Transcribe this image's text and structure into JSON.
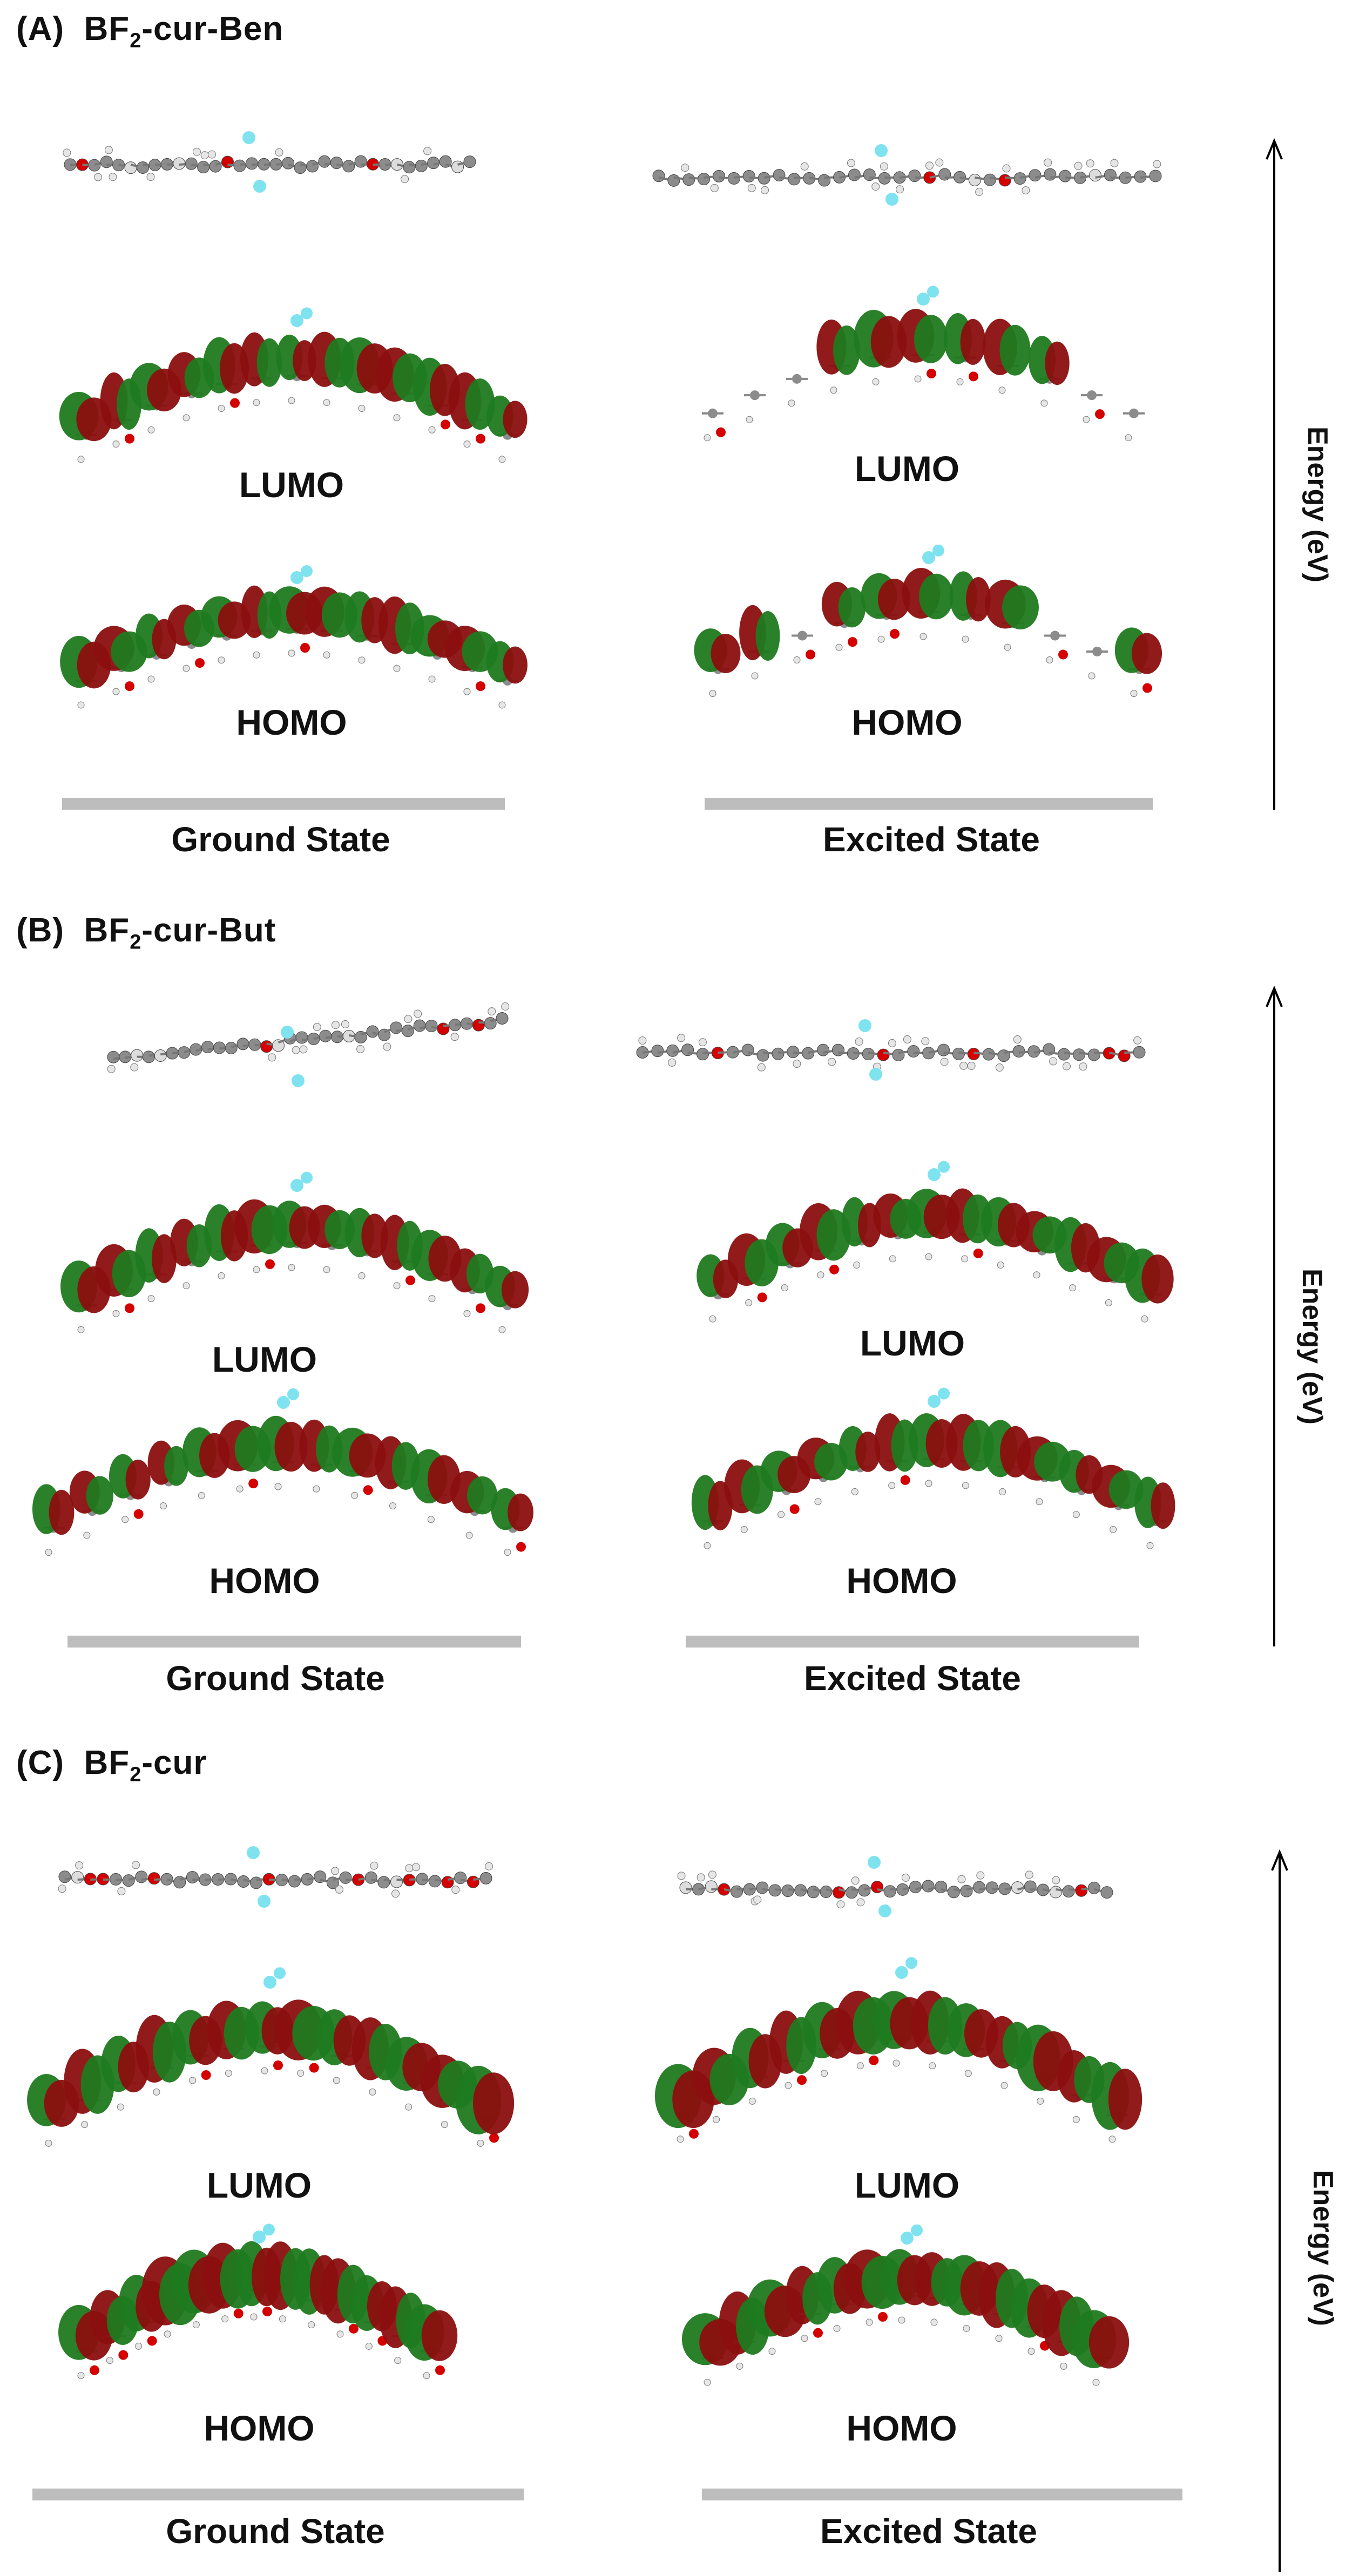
{
  "colors": {
    "lobe_red": "#8b0f0f",
    "lobe_green": "#1f7a1f",
    "carbon": "#8c8c8c",
    "oxygen": "#d40000",
    "fluorine": "#7fe3ef",
    "bar": "#bdbdbd"
  },
  "panels": [
    {
      "label": "(A)",
      "name_prefix": "BF",
      "name_sub": "2",
      "name_suffix": "-cur-Ben",
      "ground": {
        "lumo": "LUMO",
        "homo": "HOMO",
        "state": "Ground State"
      },
      "excited": {
        "lumo": "LUMO",
        "homo": "HOMO",
        "state": "Excited State"
      },
      "energy": "Energy (eV)"
    },
    {
      "label": "(B)",
      "name_prefix": "BF",
      "name_sub": "2",
      "name_suffix": "-cur-But",
      "ground": {
        "lumo": "LUMO",
        "homo": "HOMO",
        "state": "Ground State"
      },
      "excited": {
        "lumo": "LUMO",
        "homo": "HOMO",
        "state": "Excited State"
      },
      "energy": "Energy (eV)"
    },
    {
      "label": "(C)",
      "name_prefix": "BF",
      "name_sub": "2",
      "name_suffix": "-cur",
      "ground": {
        "lumo": "LUMO",
        "homo": "HOMO",
        "state": "Ground State"
      },
      "excited": {
        "lumo": "LUMO",
        "homo": "HOMO",
        "state": "Excited State"
      },
      "energy": "Energy (eV)"
    }
  ]
}
